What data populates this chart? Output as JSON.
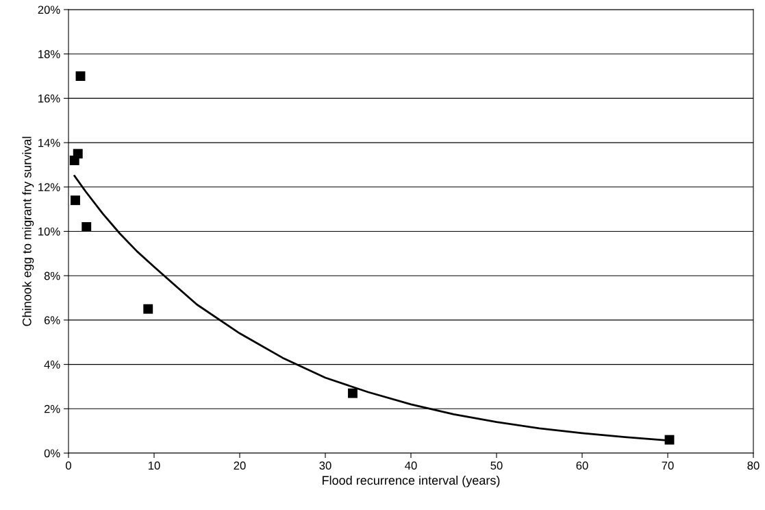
{
  "chart_data": {
    "type": "scatter",
    "xlabel": "Flood recurrence interval (years)",
    "ylabel": "Chinook egg to migrant fry survival",
    "series": [
      {
        "color": "#000000",
        "marker": "square",
        "x": [
          0.7,
          1.1,
          1.4,
          0.8,
          2.1,
          9.3,
          33.2,
          70.2
        ],
        "values": [
          13.2,
          13.5,
          17.0,
          11.4,
          10.2,
          6.5,
          2.7,
          0.6
        ]
      },
      {
        "type": "line",
        "color": "#000000",
        "line_style": "solid",
        "marker": "none",
        "x": [
          0.7,
          2,
          4,
          6,
          8,
          10,
          15,
          20,
          25,
          30,
          35,
          40,
          45,
          50,
          55,
          60,
          65,
          70
        ],
        "values": [
          12.5,
          11.8,
          10.8,
          9.9,
          9.1,
          8.4,
          6.7,
          5.4,
          4.3,
          3.4,
          2.75,
          2.2,
          1.75,
          1.4,
          1.12,
          0.9,
          0.72,
          0.57
        ]
      }
    ],
    "xlim": [
      0,
      80
    ],
    "xticks": [
      0,
      10,
      20,
      30,
      40,
      50,
      60,
      70,
      80
    ],
    "ylim": [
      0,
      20
    ],
    "yticks": [
      {
        "value": 0,
        "label": "0%"
      },
      {
        "value": 2,
        "label": "2%"
      },
      {
        "value": 4,
        "label": "4%"
      },
      {
        "value": 6,
        "label": "6%"
      },
      {
        "value": 8,
        "label": "8%"
      },
      {
        "value": 10,
        "label": "10%"
      },
      {
        "value": 12,
        "label": "12%"
      },
      {
        "value": 14,
        "label": "14%"
      },
      {
        "value": 16,
        "label": "16%"
      },
      {
        "value": 18,
        "label": "18%"
      },
      {
        "value": 20,
        "label": "20%"
      }
    ],
    "grid": "y"
  }
}
